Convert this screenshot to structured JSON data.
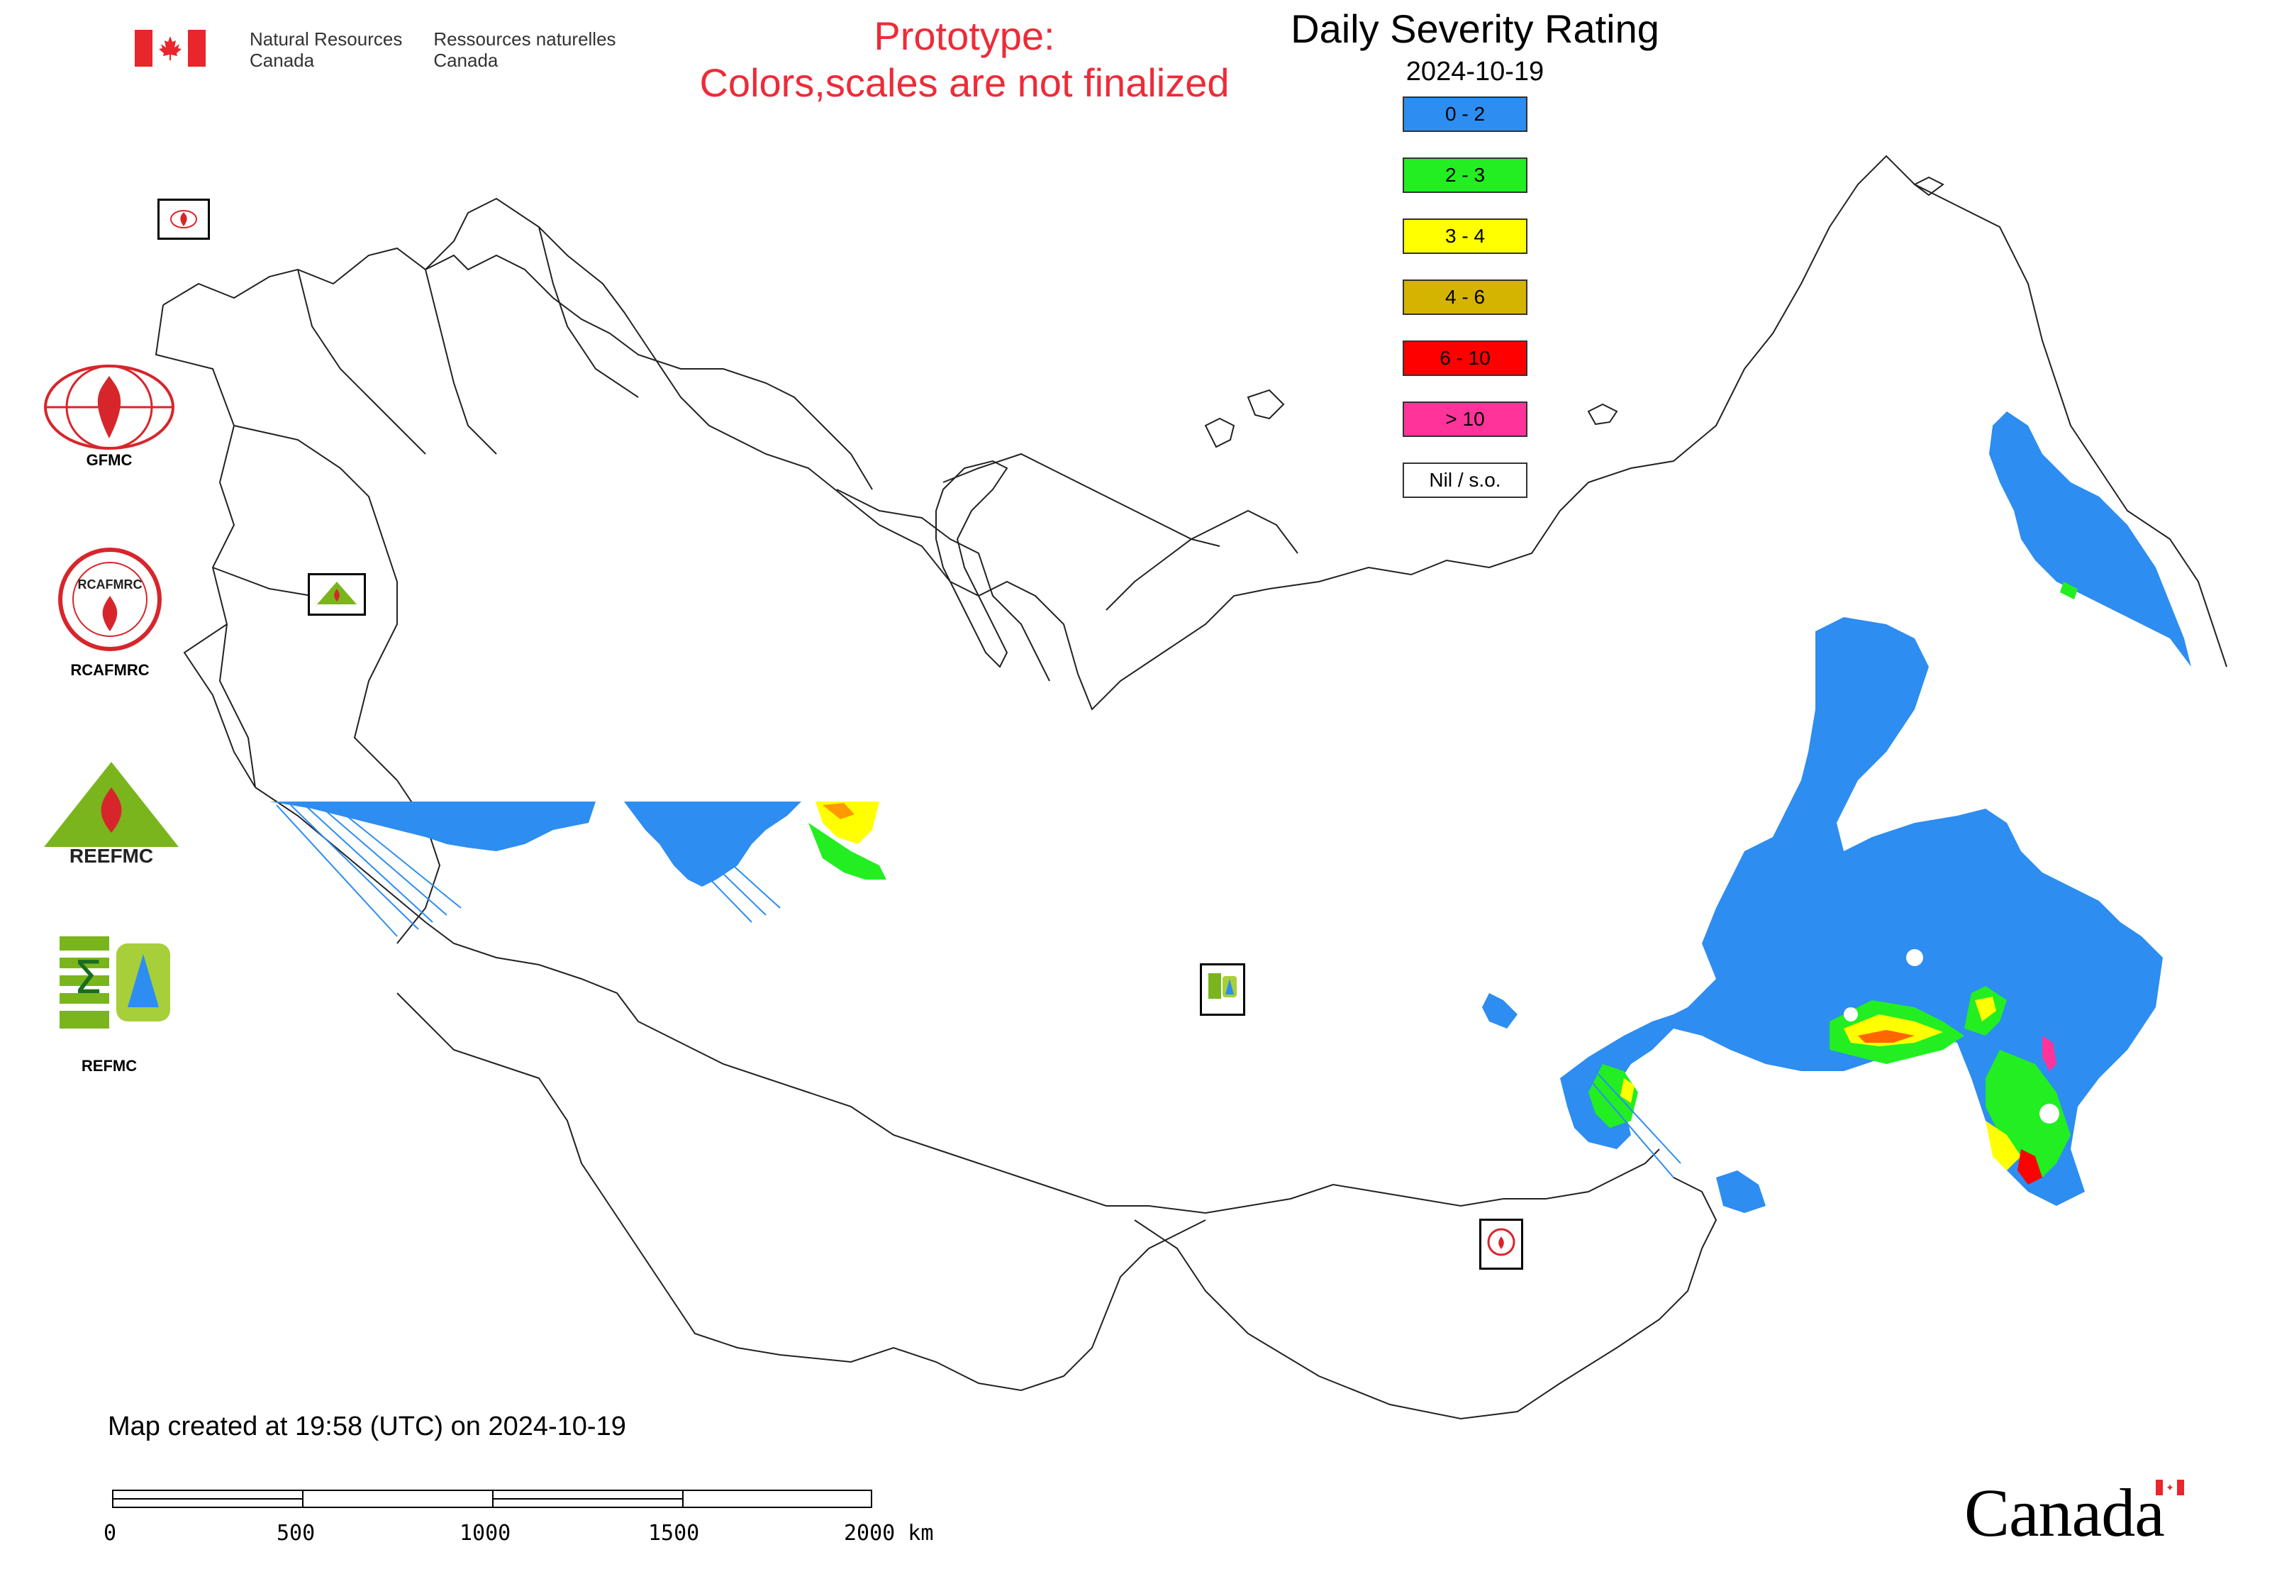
{
  "header": {
    "org_en_line1": "Natural Resources",
    "org_en_line2": "Canada",
    "org_fr_line1": "Ressources naturelles",
    "org_fr_line2": "Canada"
  },
  "prototype": {
    "line1": "Prototype:",
    "line2": "Colors,scales are not finalized"
  },
  "legend": {
    "title": "Daily Severity Rating",
    "date": "2024-10-19",
    "items": [
      {
        "label": "0 - 2",
        "color": "#2d8df0"
      },
      {
        "label": "2 - 3",
        "color": "#22ee22"
      },
      {
        "label": "3 - 4",
        "color": "#ffff00"
      },
      {
        "label": "4 - 6",
        "color": "#d4b400"
      },
      {
        "label": "6 - 10",
        "color": "#ff0000"
      },
      {
        "label": "> 10",
        "color": "#ff3399"
      },
      {
        "label": "Nil / s.o.",
        "color": "#ffffff"
      }
    ]
  },
  "centers": {
    "gfmc": "GFMC",
    "rcafmrc": "RCAFMRC",
    "reefmc": "REEFMC",
    "refmc": "REFMC"
  },
  "logo_text": {
    "gfmc": "GFMC",
    "rcafmrc": "RCAFMRC",
    "reefmc": "REEFMC",
    "refmc": "REFMC"
  },
  "footer": {
    "map_created": "Map created at 19:58 (UTC) on 2024-10-19",
    "scale_labels": [
      "0",
      "500",
      "1000",
      "1500",
      "2000 km"
    ],
    "wordmark": "Canada"
  },
  "colors": {
    "flag_red": "#e8262b",
    "prototype_red": "#ee2b38",
    "gfmc_red": "#d7262b",
    "logo_green": "#7ab51d"
  }
}
